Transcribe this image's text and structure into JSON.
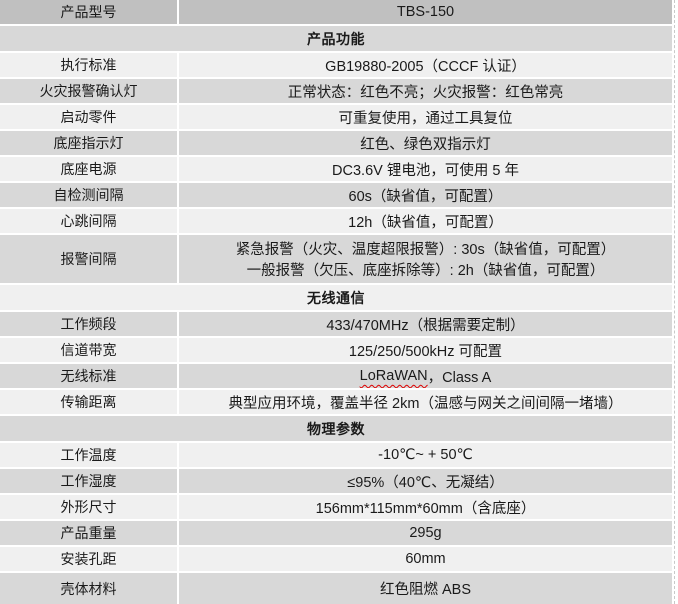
{
  "colors": {
    "header_row_bg": "#c0c0c0",
    "gray_row_bg": "#d8d8d8",
    "light_row_bg": "#f0f0f0",
    "grid_gap": "#ffffff",
    "spellcheck_underline": "#dd0000"
  },
  "rows": [
    {
      "type": "model",
      "label": "产品型号",
      "value": "TBS-150"
    },
    {
      "type": "section",
      "title": "产品功能"
    },
    {
      "type": "data",
      "label": "执行标准",
      "value": "GB19880-2005（CCCF 认证）"
    },
    {
      "type": "data",
      "label": "火灾报警确认灯",
      "value": "正常状态：红色不亮；火灾报警：红色常亮"
    },
    {
      "type": "data",
      "label": "启动零件",
      "value": "可重复使用，通过工具复位"
    },
    {
      "type": "data",
      "label": "底座指示灯",
      "value": "红色、绿色双指示灯"
    },
    {
      "type": "data",
      "label": "底座电源",
      "value": "DC3.6V 锂电池，可使用 5 年"
    },
    {
      "type": "data",
      "label": "自检测间隔",
      "value": "60s（缺省值，可配置）"
    },
    {
      "type": "data",
      "label": "心跳间隔",
      "value": "12h（缺省值，可配置）"
    },
    {
      "type": "data2",
      "label": "报警间隔",
      "line1": "紧急报警（火灾、温度超限报警）: 30s（缺省值，可配置）",
      "line2": "一般报警（欠压、底座拆除等）: 2h（缺省值，可配置）"
    },
    {
      "type": "section",
      "title": "无线通信"
    },
    {
      "type": "data",
      "label": "工作频段",
      "value": "433/470MHz（根据需要定制）"
    },
    {
      "type": "data",
      "label": "信道带宽",
      "value": "125/250/500kHz 可配置"
    },
    {
      "type": "data",
      "label": "无线标准",
      "value_word": "LoRaWAN",
      "value_rest": "，Class A"
    },
    {
      "type": "data",
      "label": "传输距离",
      "value": "典型应用环境，覆盖半径 2km（温感与网关之间间隔一堵墙）"
    },
    {
      "type": "section",
      "title": "物理参数"
    },
    {
      "type": "data",
      "label": "工作温度",
      "value": "-10℃~ + 50℃"
    },
    {
      "type": "data",
      "label": "工作湿度",
      "value": "≤95%（40℃、无凝结）"
    },
    {
      "type": "data",
      "label": "外形尺寸",
      "value": "156mm*115mm*60mm（含底座）"
    },
    {
      "type": "data",
      "label": "产品重量",
      "value": "295g"
    },
    {
      "type": "data",
      "label": "安装孔距",
      "value": "60mm"
    },
    {
      "type": "data",
      "label": "壳体材料",
      "value": "红色阻燃 ABS"
    }
  ]
}
